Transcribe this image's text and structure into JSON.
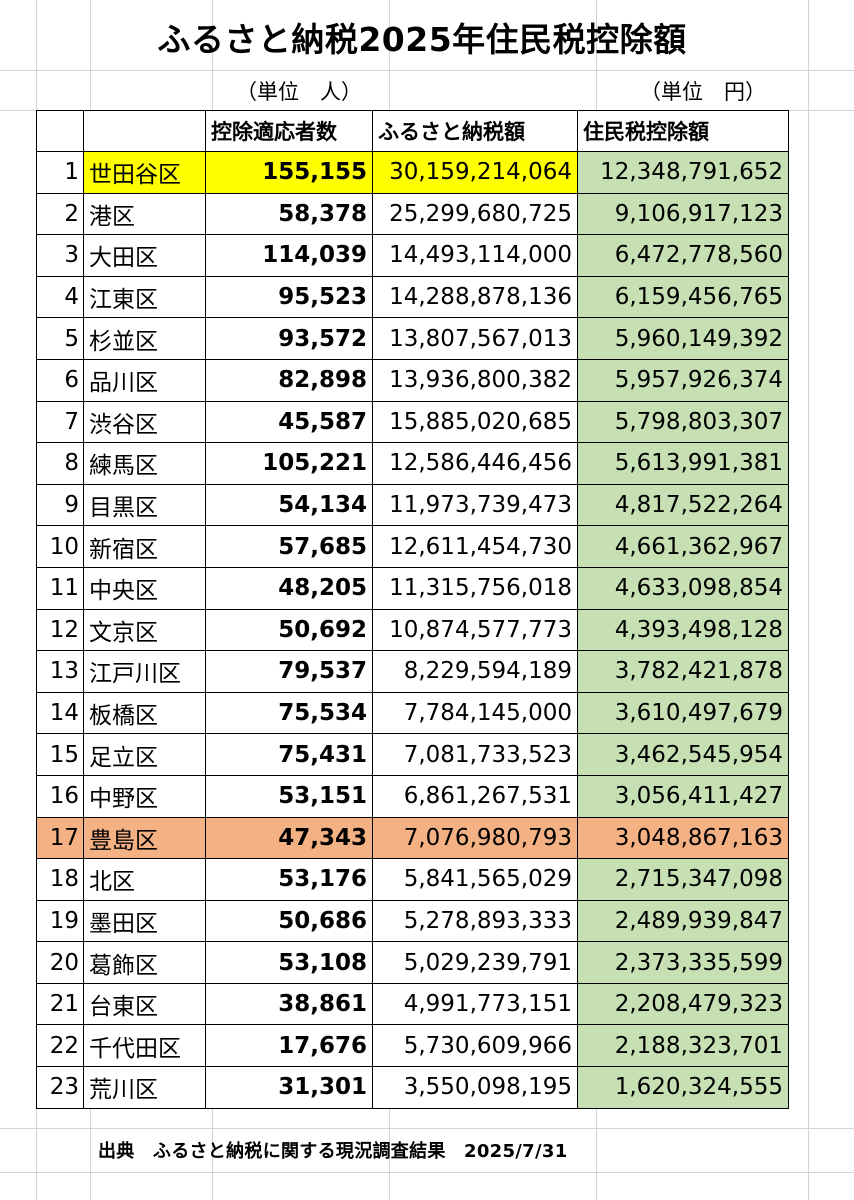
{
  "title": "ふるさと納税2025年住民税控除額",
  "units": {
    "people": "（単位　人）",
    "yen": "（単位　円）"
  },
  "headers": {
    "rank": "",
    "ward": "",
    "people": "控除適応者数",
    "donation": "ふるさと納税額",
    "deduction": "住民税控除額"
  },
  "rows": [
    {
      "rank": "1",
      "ward": "世田谷区",
      "people": "155,155",
      "donation": "30,159,214,064",
      "deduction": "12,348,791,652",
      "highlight": "yellow"
    },
    {
      "rank": "2",
      "ward": "港区",
      "people": "58,378",
      "donation": "25,299,680,725",
      "deduction": "9,106,917,123"
    },
    {
      "rank": "3",
      "ward": "大田区",
      "people": "114,039",
      "donation": "14,493,114,000",
      "deduction": "6,472,778,560"
    },
    {
      "rank": "4",
      "ward": "江東区",
      "people": "95,523",
      "donation": "14,288,878,136",
      "deduction": "6,159,456,765"
    },
    {
      "rank": "5",
      "ward": "杉並区",
      "people": "93,572",
      "donation": "13,807,567,013",
      "deduction": "5,960,149,392"
    },
    {
      "rank": "6",
      "ward": "品川区",
      "people": "82,898",
      "donation": "13,936,800,382",
      "deduction": "5,957,926,374"
    },
    {
      "rank": "7",
      "ward": "渋谷区",
      "people": "45,587",
      "donation": "15,885,020,685",
      "deduction": "5,798,803,307"
    },
    {
      "rank": "8",
      "ward": "練馬区",
      "people": "105,221",
      "donation": "12,586,446,456",
      "deduction": "5,613,991,381"
    },
    {
      "rank": "9",
      "ward": "目黒区",
      "people": "54,134",
      "donation": "11,973,739,473",
      "deduction": "4,817,522,264"
    },
    {
      "rank": "10",
      "ward": "新宿区",
      "people": "57,685",
      "donation": "12,611,454,730",
      "deduction": "4,661,362,967"
    },
    {
      "rank": "11",
      "ward": "中央区",
      "people": "48,205",
      "donation": "11,315,756,018",
      "deduction": "4,633,098,854"
    },
    {
      "rank": "12",
      "ward": "文京区",
      "people": "50,692",
      "donation": "10,874,577,773",
      "deduction": "4,393,498,128"
    },
    {
      "rank": "13",
      "ward": "江戸川区",
      "people": "79,537",
      "donation": "8,229,594,189",
      "deduction": "3,782,421,878"
    },
    {
      "rank": "14",
      "ward": "板橋区",
      "people": "75,534",
      "donation": "7,784,145,000",
      "deduction": "3,610,497,679"
    },
    {
      "rank": "15",
      "ward": "足立区",
      "people": "75,431",
      "donation": "7,081,733,523",
      "deduction": "3,462,545,954"
    },
    {
      "rank": "16",
      "ward": "中野区",
      "people": "53,151",
      "donation": "6,861,267,531",
      "deduction": "3,056,411,427"
    },
    {
      "rank": "17",
      "ward": "豊島区",
      "people": "47,343",
      "donation": "7,076,980,793",
      "deduction": "3,048,867,163",
      "highlight": "orange"
    },
    {
      "rank": "18",
      "ward": "北区",
      "people": "53,176",
      "donation": "5,841,565,029",
      "deduction": "2,715,347,098"
    },
    {
      "rank": "19",
      "ward": "墨田区",
      "people": "50,686",
      "donation": "5,278,893,333",
      "deduction": "2,489,939,847"
    },
    {
      "rank": "20",
      "ward": "葛飾区",
      "people": "53,108",
      "donation": "5,029,239,791",
      "deduction": "2,373,335,599"
    },
    {
      "rank": "21",
      "ward": "台東区",
      "people": "38,861",
      "donation": "4,991,773,151",
      "deduction": "2,208,479,323"
    },
    {
      "rank": "22",
      "ward": "千代田区",
      "people": "17,676",
      "donation": "5,730,609,966",
      "deduction": "2,188,323,701"
    },
    {
      "rank": "23",
      "ward": "荒川区",
      "people": "31,301",
      "donation": "3,550,098,195",
      "deduction": "1,620,324,555"
    }
  ],
  "source": "出典　ふるさと納税に関する現況調査結果　2025/7/31",
  "colors": {
    "highlight_top": "#ffff00",
    "highlight_row17": "#f4b183",
    "deduction_fill": "#c6e0b4",
    "grid": "#d4d4d4",
    "border": "#000000"
  }
}
